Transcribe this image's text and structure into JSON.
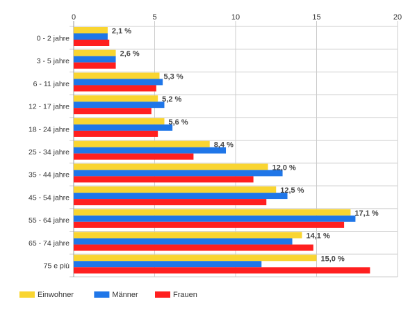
{
  "chart_data": {
    "type": "bar",
    "orientation": "horizontal",
    "categories": [
      "0 - 2 jahre",
      "3 - 5 jahre",
      "6 - 11 jahre",
      "12 - 17 jahre",
      "18 - 24 jahre",
      "25 - 34 jahre",
      "35 - 44 jahre",
      "45 - 54 jahre",
      "55 - 64 jahre",
      "65 - 74 jahre",
      "75 e più"
    ],
    "series": [
      {
        "name": "Einwohner",
        "color": "#f9d531",
        "values": [
          2.1,
          2.6,
          5.3,
          5.2,
          5.6,
          8.4,
          12.0,
          12.5,
          17.1,
          14.1,
          15.0
        ]
      },
      {
        "name": "Männer",
        "color": "#1f76e8",
        "values": [
          2.1,
          2.6,
          5.5,
          5.6,
          6.1,
          9.4,
          12.9,
          13.2,
          17.4,
          13.5,
          11.6
        ]
      },
      {
        "name": "Frauen",
        "color": "#ff1f1f",
        "values": [
          2.2,
          2.6,
          5.1,
          4.8,
          5.2,
          7.4,
          11.1,
          11.9,
          16.7,
          14.8,
          18.3
        ]
      }
    ],
    "data_labels": [
      "2,1 %",
      "2,6 %",
      "5,3 %",
      "5,2 %",
      "5,6 %",
      "8,4 %",
      "12,0 %",
      "12,5 %",
      "17,1 %",
      "14,1 %",
      "15,0 %"
    ],
    "x_ticks": [
      0,
      5,
      10,
      15,
      20
    ],
    "xlim": [
      0,
      20
    ],
    "grid": true,
    "legend_position": "bottom-left"
  }
}
